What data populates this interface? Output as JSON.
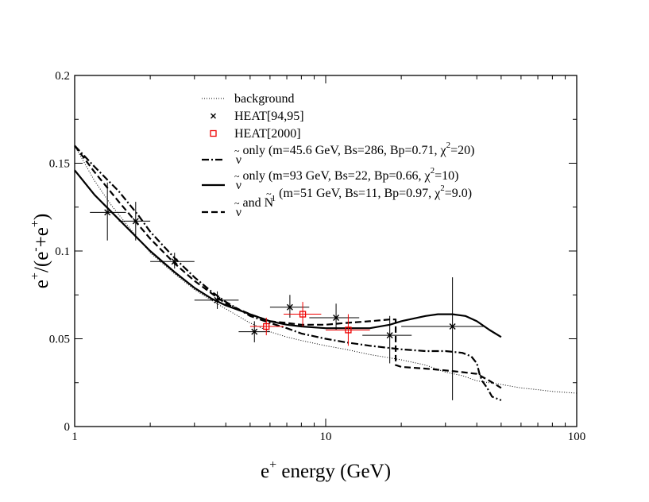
{
  "chart_data": {
    "type": "line",
    "title": "",
    "x_scale": "log",
    "xlabel": {
      "main": "e",
      "sup": "+",
      "rest": " energy (GeV)"
    },
    "ylabel": {
      "p1": "e",
      "s1": "+",
      "p2": "/(e",
      "s2": "-",
      "p3": "+e",
      "s3": "+",
      "p4": ")"
    },
    "xlim": [
      1,
      100
    ],
    "ylim": [
      0,
      0.2
    ],
    "x_ticks": [
      {
        "v": 1,
        "label": "1"
      },
      {
        "v": 10,
        "label": "10"
      },
      {
        "v": 100,
        "label": "100"
      }
    ],
    "y_ticks": [
      {
        "v": 0,
        "label": "0"
      },
      {
        "v": 0.05,
        "label": "0.05"
      },
      {
        "v": 0.1,
        "label": "0.1"
      },
      {
        "v": 0.15,
        "label": "0.15"
      },
      {
        "v": 0.2,
        "label": "0.2"
      }
    ],
    "legend_position": "top-right",
    "legend": [
      {
        "key": "background",
        "style": "dotted",
        "parts": [
          {
            "t": "background"
          }
        ]
      },
      {
        "key": "heat9495",
        "style": "cross",
        "parts": [
          {
            "t": "HEAT[94,95]"
          }
        ]
      },
      {
        "key": "heat2000",
        "style": "square",
        "parts": [
          {
            "t": "HEAT[2000]"
          }
        ]
      },
      {
        "key": "sneutrino_45",
        "style": "dashdot",
        "parts": [
          {
            "t": "ν",
            "tilde": true
          },
          {
            "t": " only (m=45.6 GeV, Bs=286, Bp=0.71, χ"
          },
          {
            "t": "2",
            "sup": true
          },
          {
            "t": "=20)"
          }
        ]
      },
      {
        "key": "sneutrino_93",
        "style": "solid",
        "parts": [
          {
            "t": "ν",
            "tilde": true
          },
          {
            "t": " only (m=93 GeV, Bs=22, Bp=0.66, χ"
          },
          {
            "t": "2",
            "sup": true
          },
          {
            "t": "=10)"
          }
        ]
      },
      {
        "key": "sneutrino_neutralino",
        "style": "dashed",
        "parts": [
          {
            "t": "ν",
            "tilde": true
          },
          {
            "t": " and "
          },
          {
            "t": "N",
            "tilde": true
          },
          {
            "t": "1",
            "sub": true
          },
          {
            "t": " (m=51 GeV, Bs=11, Bp=0.97, χ"
          },
          {
            "t": "2",
            "sup": true
          },
          {
            "t": "=9.0)"
          }
        ]
      }
    ],
    "series": [
      {
        "name": "background",
        "style": "dotted",
        "color": "#000000",
        "points": [
          [
            1,
            0.16
          ],
          [
            1.2,
            0.14
          ],
          [
            1.4,
            0.126
          ],
          [
            1.7,
            0.111
          ],
          [
            2,
            0.099
          ],
          [
            2.5,
            0.087
          ],
          [
            3,
            0.078
          ],
          [
            3.5,
            0.072
          ],
          [
            4,
            0.067
          ],
          [
            5,
            0.059
          ],
          [
            6,
            0.054
          ],
          [
            7,
            0.051
          ],
          [
            8,
            0.049
          ],
          [
            10,
            0.046
          ],
          [
            12,
            0.044
          ],
          [
            15,
            0.041
          ],
          [
            20,
            0.038
          ],
          [
            25,
            0.035
          ],
          [
            30,
            0.031
          ],
          [
            35,
            0.029
          ],
          [
            40,
            0.026
          ],
          [
            50,
            0.024
          ],
          [
            60,
            0.022
          ],
          [
            70,
            0.021
          ],
          [
            80,
            0.02
          ],
          [
            100,
            0.019
          ]
        ]
      },
      {
        "name": "sneutrino_45",
        "style": "dashdot",
        "color": "#000000",
        "points": [
          [
            1,
            0.16
          ],
          [
            1.2,
            0.148
          ],
          [
            1.5,
            0.134
          ],
          [
            1.8,
            0.12
          ],
          [
            2,
            0.111
          ],
          [
            2.5,
            0.096
          ],
          [
            3,
            0.085
          ],
          [
            3.5,
            0.077
          ],
          [
            4,
            0.071
          ],
          [
            5,
            0.063
          ],
          [
            6,
            0.059
          ],
          [
            7,
            0.056
          ],
          [
            8,
            0.053
          ],
          [
            10,
            0.05
          ],
          [
            12,
            0.048
          ],
          [
            15,
            0.046
          ],
          [
            20,
            0.044
          ],
          [
            25,
            0.043
          ],
          [
            30,
            0.043
          ],
          [
            35,
            0.042
          ],
          [
            38,
            0.04
          ],
          [
            40,
            0.036
          ],
          [
            41,
            0.03
          ],
          [
            42,
            0.026
          ],
          [
            44,
            0.022
          ],
          [
            46,
            0.017
          ],
          [
            50,
            0.015
          ]
        ]
      },
      {
        "name": "sneutrino_93",
        "style": "solid",
        "color": "#000000",
        "points": [
          [
            1,
            0.146
          ],
          [
            1.2,
            0.132
          ],
          [
            1.5,
            0.118
          ],
          [
            2,
            0.1
          ],
          [
            2.5,
            0.088
          ],
          [
            3,
            0.079
          ],
          [
            3.5,
            0.073
          ],
          [
            4,
            0.069
          ],
          [
            5,
            0.064
          ],
          [
            6,
            0.06
          ],
          [
            7,
            0.058
          ],
          [
            8,
            0.057
          ],
          [
            10,
            0.056
          ],
          [
            12,
            0.056
          ],
          [
            15,
            0.056
          ],
          [
            18,
            0.058
          ],
          [
            20,
            0.06
          ],
          [
            25,
            0.063
          ],
          [
            28,
            0.064
          ],
          [
            32,
            0.064
          ],
          [
            36,
            0.063
          ],
          [
            40,
            0.06
          ],
          [
            45,
            0.055
          ],
          [
            50,
            0.051
          ]
        ]
      },
      {
        "name": "sneutrino_neutralino",
        "style": "dashed",
        "color": "#000000",
        "points": [
          [
            1,
            0.16
          ],
          [
            1.2,
            0.145
          ],
          [
            1.5,
            0.128
          ],
          [
            2,
            0.107
          ],
          [
            2.5,
            0.093
          ],
          [
            3,
            0.083
          ],
          [
            3.5,
            0.076
          ],
          [
            4,
            0.07
          ],
          [
            5,
            0.064
          ],
          [
            6,
            0.06
          ],
          [
            7,
            0.059
          ],
          [
            8,
            0.058
          ],
          [
            10,
            0.058
          ],
          [
            12,
            0.059
          ],
          [
            15,
            0.06
          ],
          [
            18,
            0.061
          ],
          [
            19,
            0.061
          ],
          [
            19,
            0.035
          ],
          [
            20,
            0.034
          ],
          [
            25,
            0.033
          ],
          [
            30,
            0.032
          ],
          [
            35,
            0.031
          ],
          [
            40,
            0.03
          ],
          [
            45,
            0.026
          ],
          [
            50,
            0.022
          ]
        ]
      }
    ],
    "heat_94_95": {
      "color": "#000000",
      "points": [
        {
          "x": 1.35,
          "y": 0.122,
          "xlo": 1.15,
          "xhi": 1.6,
          "ylo": 0.106,
          "yhi": 0.139
        },
        {
          "x": 1.75,
          "y": 0.117,
          "xlo": 1.5,
          "xhi": 2.0,
          "ylo": 0.106,
          "yhi": 0.128
        },
        {
          "x": 2.5,
          "y": 0.094,
          "xlo": 2.0,
          "xhi": 3.0,
          "ylo": 0.09,
          "yhi": 0.099
        },
        {
          "x": 3.7,
          "y": 0.072,
          "xlo": 3.0,
          "xhi": 4.5,
          "ylo": 0.067,
          "yhi": 0.077
        },
        {
          "x": 5.2,
          "y": 0.054,
          "xlo": 4.5,
          "xhi": 6.0,
          "ylo": 0.048,
          "yhi": 0.06
        },
        {
          "x": 7.2,
          "y": 0.068,
          "xlo": 6.0,
          "xhi": 8.6,
          "ylo": 0.062,
          "yhi": 0.075
        },
        {
          "x": 11.0,
          "y": 0.062,
          "xlo": 8.6,
          "xhi": 13.6,
          "ylo": 0.055,
          "yhi": 0.07
        },
        {
          "x": 18.0,
          "y": 0.052,
          "xlo": 14.0,
          "xhi": 22.0,
          "ylo": 0.036,
          "yhi": 0.063
        },
        {
          "x": 32.0,
          "y": 0.057,
          "xlo": 20.0,
          "xhi": 43.0,
          "ylo": 0.015,
          "yhi": 0.085
        }
      ]
    },
    "heat_2000": {
      "color": "#ee0000",
      "points": [
        {
          "x": 5.8,
          "y": 0.057,
          "xlo": 5.0,
          "xhi": 6.8,
          "ylo": 0.052,
          "yhi": 0.062
        },
        {
          "x": 8.1,
          "y": 0.064,
          "xlo": 6.8,
          "xhi": 9.6,
          "ylo": 0.057,
          "yhi": 0.071
        },
        {
          "x": 12.3,
          "y": 0.055,
          "xlo": 10.0,
          "xhi": 15.0,
          "ylo": 0.046,
          "yhi": 0.064
        }
      ]
    }
  }
}
